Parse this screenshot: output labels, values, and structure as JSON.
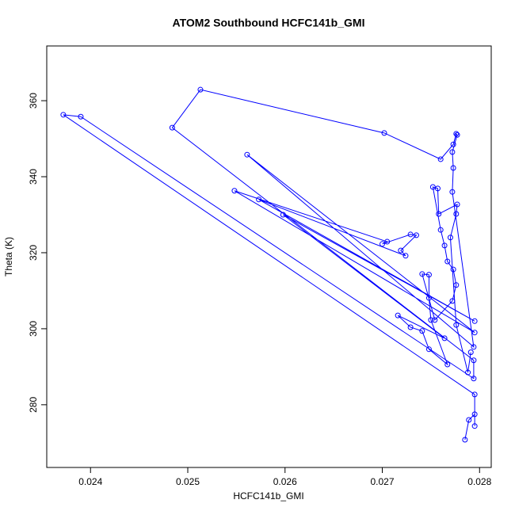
{
  "chart_data": {
    "type": "line",
    "title": "ATOM2 Southbound HCFC141b_GMI",
    "x_label": "HCFC141b_GMI",
    "y_label": "Theta (K)",
    "color": "#0000ff",
    "x": [
      0.02785,
      0.02789,
      0.02795,
      0.02795,
      0.02795,
      0.02372,
      0.0239,
      0.02794,
      0.02794,
      0.02484,
      0.02513,
      0.02702,
      0.0276,
      0.02773,
      0.02776,
      0.02777,
      0.02772,
      0.02773,
      0.02772,
      0.02794,
      0.02561,
      0.02795,
      0.02548,
      0.02705,
      0.027,
      0.02729,
      0.02735,
      0.02719,
      0.02724,
      0.02573,
      0.02795,
      0.02598,
      0.02764,
      0.02716,
      0.02729,
      0.02741,
      0.02748,
      0.02767,
      0.0275,
      0.02748,
      0.02748,
      0.02741,
      0.02754,
      0.02772,
      0.02776,
      0.02773,
      0.02767,
      0.02764,
      0.0276,
      0.02752,
      0.02757,
      0.02758,
      0.02777,
      0.02776,
      0.0277,
      0.02776,
      0.02788,
      0.02791
    ],
    "values": [
      270.8,
      276.0,
      277.5,
      274.4,
      282.7,
      356.3,
      355.8,
      286.9,
      291.7,
      352.9,
      362.9,
      351.5,
      344.6,
      348.5,
      351.3,
      351.0,
      346.5,
      342.3,
      336.0,
      295.2,
      345.8,
      299.0,
      336.3,
      322.9,
      322.3,
      324.8,
      324.6,
      320.6,
      319.2,
      334.0,
      302.0,
      330.0,
      297.5,
      303.5,
      300.4,
      299.4,
      294.6,
      290.6,
      302.3,
      308.1,
      314.2,
      314.4,
      302.3,
      307.3,
      311.5,
      315.6,
      317.7,
      321.9,
      326.0,
      337.3,
      336.9,
      330.2,
      332.7,
      330.2,
      324.0,
      301.0,
      288.5,
      293.8
    ],
    "xlim": [
      0.02355,
      0.02812
    ],
    "ylim": [
      263.5,
      374.4
    ],
    "xticks": [
      0.024,
      0.025,
      0.026,
      0.027,
      0.028
    ],
    "yticks": [
      280,
      300,
      320,
      340,
      360
    ]
  }
}
